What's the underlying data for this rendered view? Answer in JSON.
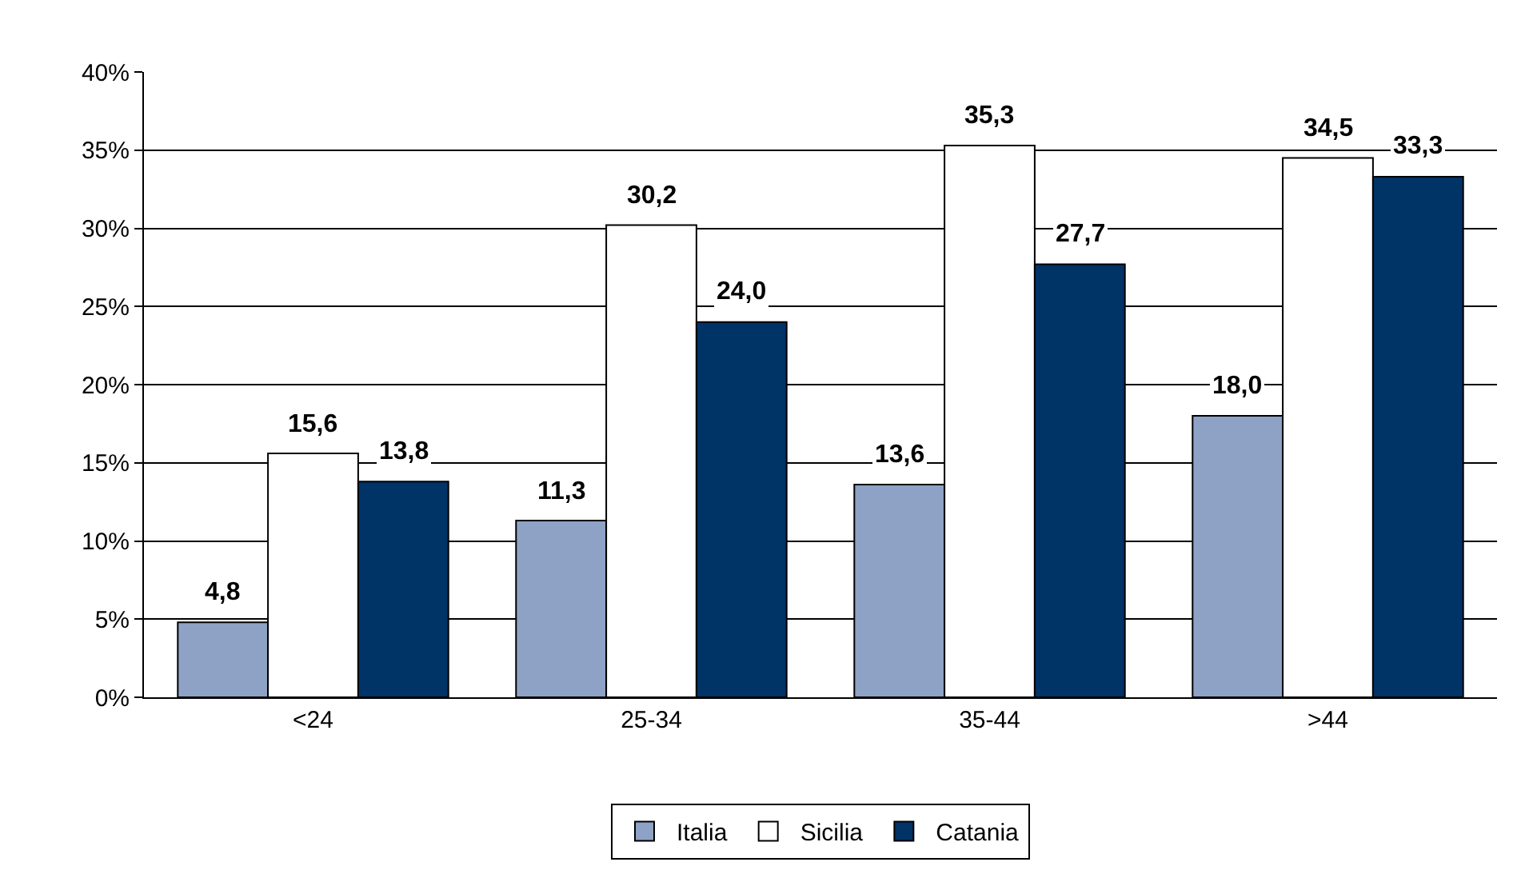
{
  "chart_data": {
    "type": "bar",
    "categories": [
      "<24",
      "25-34",
      "35-44",
      ">44"
    ],
    "series": [
      {
        "name": "Italia",
        "color": "#8da2c4",
        "values": [
          4.8,
          11.3,
          13.6,
          18.0
        ],
        "value_labels": [
          "4,8",
          "11,3",
          "13,6",
          "18,0"
        ]
      },
      {
        "name": "Sicilia",
        "color": "#ffffff",
        "values": [
          15.6,
          30.2,
          35.3,
          34.5
        ],
        "value_labels": [
          "15,6",
          "30,2",
          "35,3",
          "34,5"
        ]
      },
      {
        "name": "Catania",
        "color": "#003366",
        "values": [
          13.8,
          24.0,
          27.7,
          33.3
        ],
        "value_labels": [
          "13,8",
          "24,0",
          "27,7",
          "33,3"
        ]
      }
    ],
    "ylim": [
      0,
      40
    ],
    "yticks": [
      {
        "value": 0,
        "label": "0%"
      },
      {
        "value": 5,
        "label": "5%"
      },
      {
        "value": 10,
        "label": "10%"
      },
      {
        "value": 15,
        "label": "15%"
      },
      {
        "value": 20,
        "label": "20%"
      },
      {
        "value": 25,
        "label": "25%"
      },
      {
        "value": 30,
        "label": "30%"
      },
      {
        "value": 35,
        "label": "35%"
      },
      {
        "value": 40,
        "label": "40%"
      }
    ],
    "grid": "y",
    "legend": "bottom"
  }
}
